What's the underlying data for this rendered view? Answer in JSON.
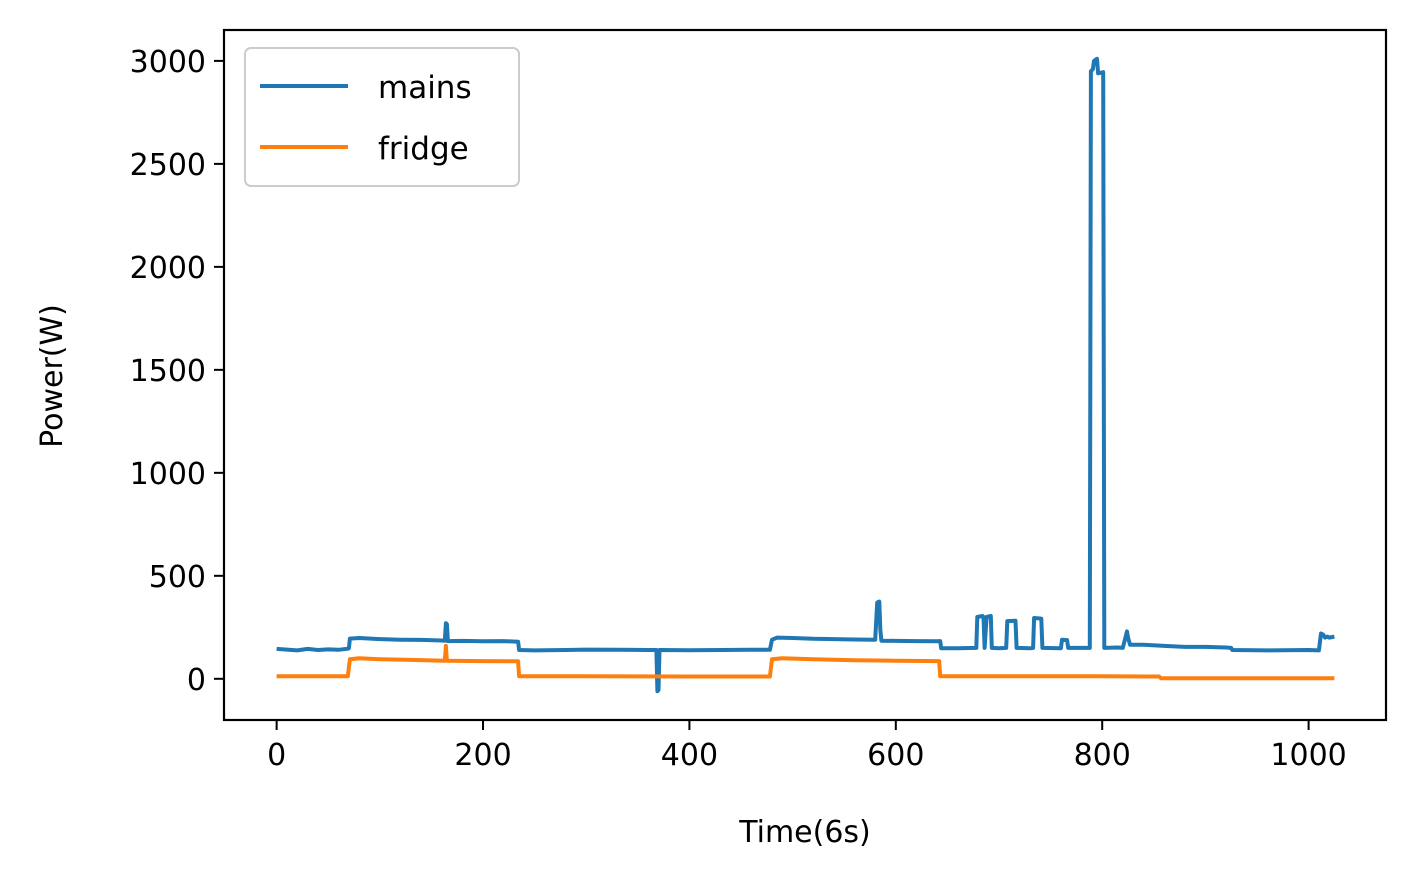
{
  "chart_data": {
    "type": "line",
    "title": "",
    "xlabel": "Time(6s)",
    "ylabel": "Power(W)",
    "xlim": [
      -51,
      1075
    ],
    "ylim": [
      -200,
      3150
    ],
    "xticks": [
      0,
      200,
      400,
      600,
      800,
      1000
    ],
    "yticks": [
      0,
      500,
      1000,
      1500,
      2000,
      2500,
      3000
    ],
    "grid": false,
    "legend": {
      "position": "upper-left"
    },
    "series": [
      {
        "name": "mains",
        "color": "#1f77b4",
        "points": [
          [
            0,
            145
          ],
          [
            10,
            142
          ],
          [
            20,
            138
          ],
          [
            30,
            145
          ],
          [
            40,
            140
          ],
          [
            50,
            143
          ],
          [
            60,
            141
          ],
          [
            69,
            146
          ],
          [
            70,
            148
          ],
          [
            71,
            195
          ],
          [
            80,
            198
          ],
          [
            100,
            193
          ],
          [
            120,
            190
          ],
          [
            140,
            189
          ],
          [
            160,
            186
          ],
          [
            163,
            185
          ],
          [
            164,
            270
          ],
          [
            165,
            265
          ],
          [
            166,
            183
          ],
          [
            180,
            184
          ],
          [
            200,
            182
          ],
          [
            220,
            183
          ],
          [
            234,
            180
          ],
          [
            235,
            140
          ],
          [
            250,
            138
          ],
          [
            280,
            140
          ],
          [
            300,
            142
          ],
          [
            330,
            141
          ],
          [
            360,
            140
          ],
          [
            368,
            140
          ],
          [
            369,
            -60
          ],
          [
            370,
            -55
          ],
          [
            371,
            140
          ],
          [
            400,
            139
          ],
          [
            430,
            140
          ],
          [
            460,
            141
          ],
          [
            478,
            141
          ],
          [
            480,
            190
          ],
          [
            485,
            200
          ],
          [
            500,
            198
          ],
          [
            520,
            194
          ],
          [
            540,
            193
          ],
          [
            560,
            191
          ],
          [
            580,
            190
          ],
          [
            582,
            370
          ],
          [
            584,
            375
          ],
          [
            585,
            240
          ],
          [
            586,
            185
          ],
          [
            600,
            184
          ],
          [
            620,
            183
          ],
          [
            640,
            182
          ],
          [
            643,
            183
          ],
          [
            644,
            148
          ],
          [
            660,
            148
          ],
          [
            678,
            150
          ],
          [
            679,
            300
          ],
          [
            684,
            305
          ],
          [
            685,
            300
          ],
          [
            686,
            150
          ],
          [
            688,
            300
          ],
          [
            692,
            305
          ],
          [
            693,
            150
          ],
          [
            700,
            148
          ],
          [
            707,
            150
          ],
          [
            708,
            280
          ],
          [
            716,
            282
          ],
          [
            717,
            150
          ],
          [
            730,
            148
          ],
          [
            733,
            150
          ],
          [
            734,
            295
          ],
          [
            740,
            293
          ],
          [
            741,
            292
          ],
          [
            742,
            150
          ],
          [
            760,
            148
          ],
          [
            761,
            190
          ],
          [
            766,
            188
          ],
          [
            767,
            150
          ],
          [
            788,
            150
          ],
          [
            789,
            2950
          ],
          [
            791,
            2960
          ],
          [
            792,
            3000
          ],
          [
            795,
            3010
          ],
          [
            796,
            2940
          ],
          [
            801,
            2945
          ],
          [
            802,
            150
          ],
          [
            815,
            152
          ],
          [
            820,
            150
          ],
          [
            824,
            230
          ],
          [
            825,
            200
          ],
          [
            827,
            165
          ],
          [
            840,
            165
          ],
          [
            860,
            160
          ],
          [
            880,
            155
          ],
          [
            900,
            155
          ],
          [
            920,
            152
          ],
          [
            925,
            150
          ],
          [
            926,
            140
          ],
          [
            960,
            138
          ],
          [
            1000,
            140
          ],
          [
            1010,
            138
          ],
          [
            1012,
            220
          ],
          [
            1014,
            215
          ],
          [
            1016,
            200
          ],
          [
            1018,
            205
          ],
          [
            1020,
            200
          ],
          [
            1025,
            205
          ]
        ]
      },
      {
        "name": "fridge",
        "color": "#ff7f0e",
        "points": [
          [
            0,
            12
          ],
          [
            69,
            12
          ],
          [
            71,
            95
          ],
          [
            80,
            100
          ],
          [
            100,
            95
          ],
          [
            130,
            92
          ],
          [
            163,
            88
          ],
          [
            164,
            160
          ],
          [
            165,
            88
          ],
          [
            200,
            86
          ],
          [
            234,
            85
          ],
          [
            235,
            12
          ],
          [
            300,
            12
          ],
          [
            400,
            11
          ],
          [
            478,
            11
          ],
          [
            480,
            95
          ],
          [
            490,
            100
          ],
          [
            520,
            95
          ],
          [
            560,
            90
          ],
          [
            600,
            88
          ],
          [
            642,
            86
          ],
          [
            643,
            12
          ],
          [
            700,
            12
          ],
          [
            800,
            12
          ],
          [
            855,
            11
          ],
          [
            857,
            3
          ],
          [
            900,
            3
          ],
          [
            1000,
            3
          ],
          [
            1025,
            3
          ]
        ]
      }
    ]
  }
}
